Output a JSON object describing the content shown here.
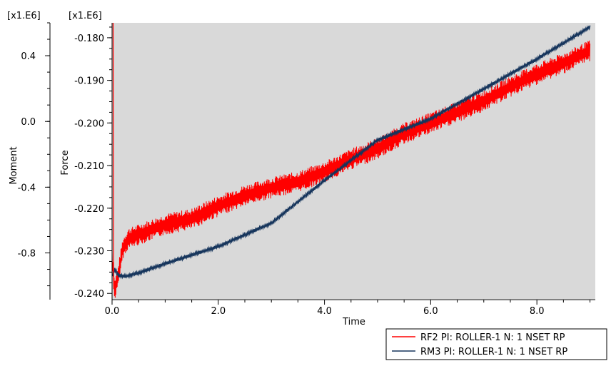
{
  "chart_data": {
    "type": "line",
    "x": {
      "label": "Time",
      "range": [
        0.0,
        9.1
      ],
      "ticks": [
        0.0,
        2.0,
        4.0,
        6.0,
        8.0
      ],
      "tick_labels": [
        "0.0",
        "2.0",
        "4.0",
        "6.0",
        "8.0"
      ]
    },
    "y_left": {
      "label": "Moment",
      "multiplier": "[x1.E6]",
      "range": [
        -1.08,
        0.6
      ],
      "ticks": [
        0.4,
        0.0,
        -0.4,
        -0.8
      ],
      "tick_labels": [
        "0.4",
        "0.0",
        "-0.4",
        "-0.8"
      ]
    },
    "y_right": {
      "label": "Force",
      "multiplier": "[x1.E6]",
      "range": [
        -0.2413,
        -0.1765
      ],
      "ticks": [
        -0.18,
        -0.19,
        -0.2,
        -0.21,
        -0.22,
        -0.23,
        -0.24
      ],
      "tick_labels": [
        "-0.180",
        "-0.190",
        "-0.200",
        "-0.210",
        "-0.220",
        "-0.230",
        "-0.240"
      ]
    },
    "grid": false,
    "background": "#d9d9d9",
    "legend_position": "bottom-right",
    "series": [
      {
        "name": "RF2 PI: ROLLER-1 N: 1 NSET RP",
        "axis": "Force",
        "color": "#ff0000",
        "band_width": 0.0025,
        "points": [
          [
            0.0,
            -0.232
          ],
          [
            0.05,
            -0.239
          ],
          [
            0.1,
            -0.237
          ],
          [
            0.2,
            -0.2295
          ],
          [
            0.3,
            -0.2272
          ],
          [
            0.5,
            -0.2262
          ],
          [
            0.75,
            -0.225
          ],
          [
            1.0,
            -0.2238
          ],
          [
            1.5,
            -0.2225
          ],
          [
            2.0,
            -0.2195
          ],
          [
            2.5,
            -0.217
          ],
          [
            3.0,
            -0.2152
          ],
          [
            3.5,
            -0.2138
          ],
          [
            4.0,
            -0.2115
          ],
          [
            4.5,
            -0.2085
          ],
          [
            5.0,
            -0.206
          ],
          [
            5.5,
            -0.2025
          ],
          [
            6.0,
            -0.2
          ],
          [
            6.5,
            -0.1975
          ],
          [
            7.0,
            -0.1948
          ],
          [
            7.5,
            -0.1915
          ],
          [
            8.0,
            -0.1885
          ],
          [
            8.5,
            -0.186
          ],
          [
            9.0,
            -0.183
          ]
        ]
      },
      {
        "name": "RM3 PI: ROLLER-1 N: 1 NSET RP",
        "axis": "Force",
        "color": "#16355c",
        "band_width": 0.0004,
        "points": [
          [
            0.0,
            -0.236
          ],
          [
            0.05,
            -0.2343
          ],
          [
            0.12,
            -0.2358
          ],
          [
            0.25,
            -0.236
          ],
          [
            0.5,
            -0.2352
          ],
          [
            1.0,
            -0.233
          ],
          [
            2.0,
            -0.229
          ],
          [
            3.0,
            -0.2235
          ],
          [
            4.0,
            -0.2135
          ],
          [
            5.0,
            -0.204
          ],
          [
            6.0,
            -0.199
          ],
          [
            7.0,
            -0.192
          ],
          [
            8.0,
            -0.185
          ],
          [
            9.0,
            -0.1775
          ]
        ]
      }
    ]
  }
}
